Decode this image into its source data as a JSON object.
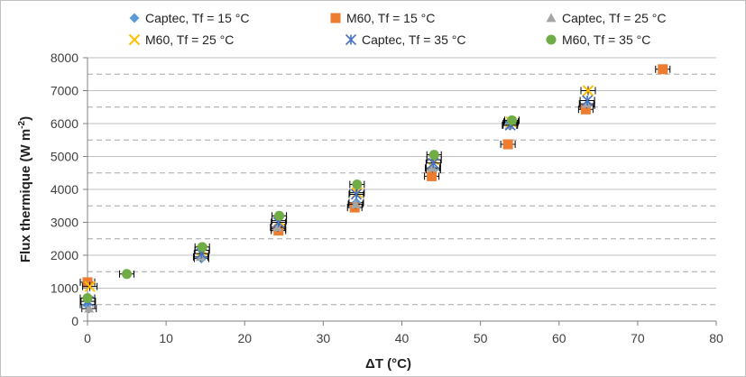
{
  "chart_data": {
    "type": "scatter",
    "xlabel": "ΔT (°C)",
    "ylabel": "Flux thermique (W m-2)",
    "ylabel_main": "Flux thermique (W m",
    "ylabel_sup": "-2",
    "ylabel_close": ")",
    "xlim": [
      0,
      80
    ],
    "ylim": [
      0,
      8000
    ],
    "x_ticks": [
      "0",
      "10",
      "20",
      "30",
      "40",
      "50",
      "60",
      "70",
      "80"
    ],
    "y_ticks": [
      "0",
      "1000",
      "2000",
      "3000",
      "4000",
      "5000",
      "6000",
      "7000",
      "8000"
    ],
    "grid": "horizontal: solid at each 1000, dashed at each half-thousand",
    "legend_position": "top",
    "error_bars": "horizontal and vertical on every point",
    "series": [
      {
        "name": "Captec, Tf = 15 °C",
        "marker": "diamond",
        "color": "#5b9bd5",
        "x": [
          0,
          14.5,
          24.3,
          34.2,
          44,
          53.8,
          63.6
        ],
        "y": [
          500,
          1900,
          2800,
          3600,
          4600,
          6000,
          6550
        ]
      },
      {
        "name": "M60, Tf = 15 °C",
        "marker": "square",
        "color": "#ed7d31",
        "x": [
          0,
          24.3,
          34,
          43.8,
          53.5,
          63.4,
          73.2
        ],
        "y": [
          1180,
          2750,
          3450,
          4400,
          5370,
          6430,
          7650
        ]
      },
      {
        "name": "Captec, Tf = 25 °C",
        "marker": "triangle",
        "color": "#a5a5a5",
        "x": [
          0.2,
          14.4,
          24.2,
          34.1,
          43.9,
          53.7,
          63.5
        ],
        "y": [
          380,
          1950,
          2850,
          3550,
          4650,
          5950,
          6600
        ]
      },
      {
        "name": "M60, Tf = 25 °C",
        "marker": "x",
        "color": "#ffc000",
        "x": [
          0.3,
          14.6,
          24.4,
          34.3,
          44.1,
          53.9,
          63.7
        ],
        "y": [
          1050,
          2150,
          3050,
          3900,
          4900,
          6050,
          7000
        ]
      },
      {
        "name": "Captec, Tf = 35 °C",
        "marker": "asterisk",
        "color": "#4472c4",
        "x": [
          0.1,
          14.5,
          24.3,
          34.2,
          44,
          53.8,
          63.6
        ],
        "y": [
          600,
          2050,
          3000,
          3850,
          4800,
          5950,
          6700
        ]
      },
      {
        "name": "M60, Tf = 35 °C",
        "marker": "circle",
        "color": "#70ad47",
        "x": [
          0,
          5,
          14.6,
          24.4,
          34.3,
          44.1,
          54
        ],
        "y": [
          700,
          1430,
          2250,
          3200,
          4150,
          5050,
          6100
        ]
      }
    ]
  }
}
